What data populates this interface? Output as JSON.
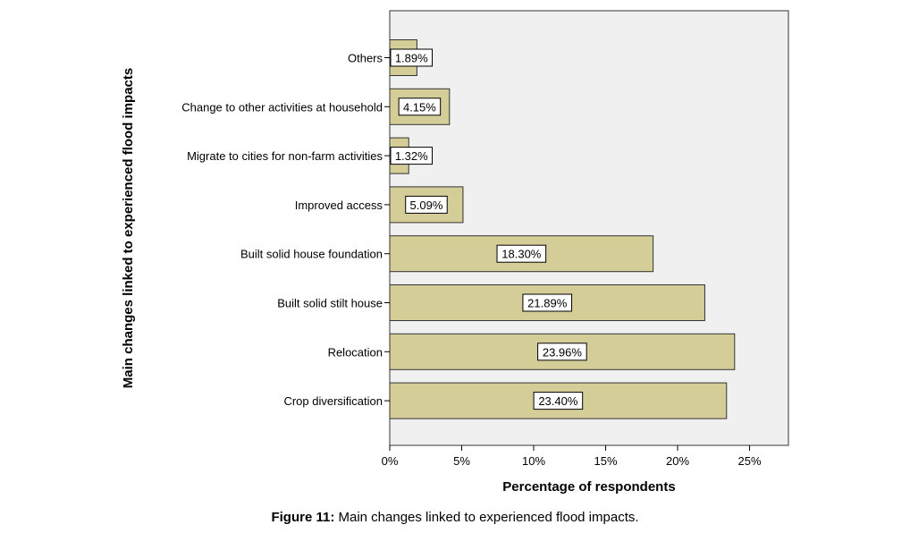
{
  "chart_data": {
    "type": "bar",
    "orientation": "horizontal",
    "categories": [
      "Others",
      "Change to other activities at household",
      "Migrate to cities for non-farm activities",
      "Improved access",
      "Built solid house foundation",
      "Built solid stilt house",
      "Relocation",
      "Crop diversification"
    ],
    "values": [
      1.89,
      4.15,
      1.32,
      5.09,
      18.3,
      21.89,
      23.96,
      23.4
    ],
    "data_labels": [
      "1.89%",
      "4.15%",
      "1.32%",
      "5.09%",
      "18.30%",
      "21.89%",
      "23.96%",
      "23.40%"
    ],
    "xlabel": "Percentage of respondents",
    "ylabel": "Main changes linked to experienced flood impacts",
    "xlim": [
      0,
      27.7
    ],
    "xticks": [
      0,
      5,
      10,
      15,
      20,
      25
    ],
    "xtick_labels": [
      "0%",
      "5%",
      "10%",
      "15%",
      "20%",
      "25%"
    ],
    "grid": false,
    "legend": "none",
    "colors": {
      "bar_fill": "#d4cd98",
      "bar_stroke": "#333333",
      "plot_background": "#f0f0f0",
      "label_box": "#ffffff"
    }
  },
  "caption": {
    "label": "Figure 11:",
    "text": " Main changes linked to experienced flood impacts."
  }
}
